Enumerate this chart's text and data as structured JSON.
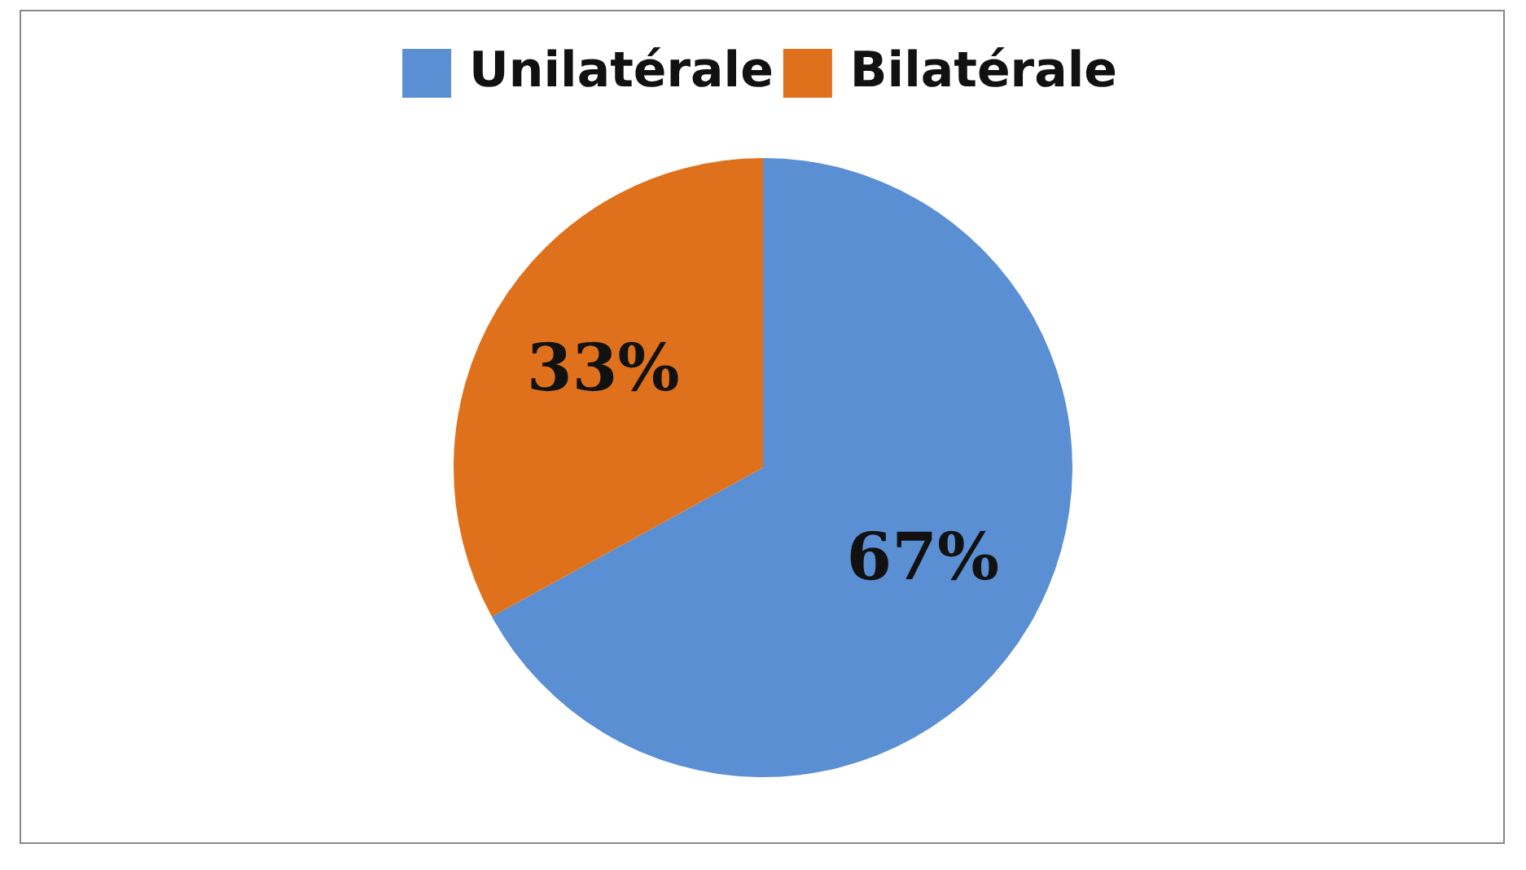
{
  "chart_data": {
    "type": "pie",
    "categories": [
      "Unilatérale",
      "Bilatérale"
    ],
    "values": [
      67,
      33
    ],
    "colors": [
      "#5a8fd3",
      "#e0711c"
    ],
    "value_labels": [
      "67%",
      "33%"
    ],
    "legend": "top"
  }
}
